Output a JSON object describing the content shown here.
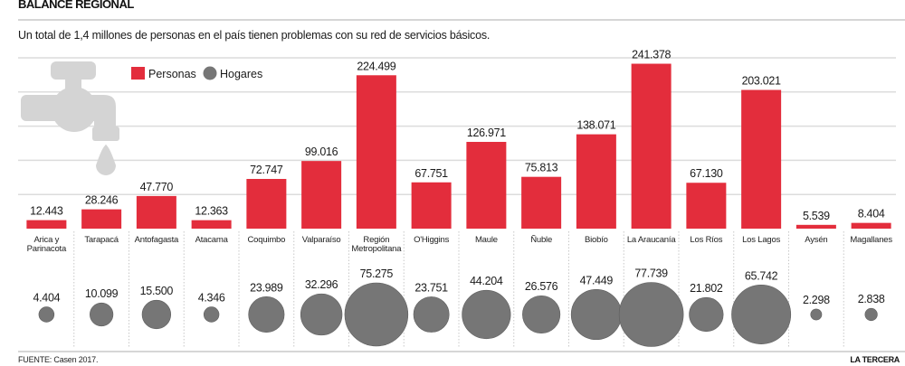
{
  "header": {
    "title": "BALANCE REGIONAL",
    "subtitle": "Un total de 1,4 millones de personas en el país tienen problemas con su red de servicios básicos."
  },
  "footer": {
    "source": "FUENTE: Casen 2017.",
    "brand": "LA TERCERA"
  },
  "colors": {
    "personas": "#e32d3c",
    "hogares": "#767676",
    "grid": "#dcdcdc",
    "faucet": "#d4d4d4"
  },
  "icons": {
    "illustration": "faucet-icon"
  },
  "chart_data": {
    "type": "bar",
    "title": "BALANCE REGIONAL",
    "subtitle": "Un total de 1,4 millones de personas en el país tienen problemas con su red de servicios básicos.",
    "xlabel": "",
    "ylabel": "",
    "ylim": [
      0,
      250000
    ],
    "grid": true,
    "legend": {
      "placement": "top-left",
      "entries": [
        {
          "name": "Personas",
          "marker": "square"
        },
        {
          "name": "Hogares",
          "marker": "circle"
        }
      ]
    },
    "categories": [
      "Arica y Parinacota",
      "Tarapacá",
      "Antofagasta",
      "Atacama",
      "Coquimbo",
      "Valparaíso",
      "Región Metropolitana",
      "O'Higgins",
      "Maule",
      "Ñuble",
      "Biobío",
      "La Araucanía",
      "Los Ríos",
      "Los Lagos",
      "Aysén",
      "Magallanes"
    ],
    "category_lines": [
      [
        "Arica y",
        "Parinacota"
      ],
      [
        "Tarapacá"
      ],
      [
        "Antofagasta"
      ],
      [
        "Atacama"
      ],
      [
        "Coquimbo"
      ],
      [
        "Valparaíso"
      ],
      [
        "Región",
        "Metropolitana"
      ],
      [
        "O'Higgins"
      ],
      [
        "Maule"
      ],
      [
        "Ñuble"
      ],
      [
        "Biobío"
      ],
      [
        "La Araucanía"
      ],
      [
        "Los Ríos"
      ],
      [
        "Los Lagos"
      ],
      [
        "Aysén"
      ],
      [
        "Magallanes"
      ]
    ],
    "series": [
      {
        "name": "Personas",
        "type": "bar",
        "values": [
          12443,
          28246,
          47770,
          12363,
          72747,
          99016,
          224499,
          67751,
          126971,
          75813,
          138071,
          241378,
          67130,
          203021,
          5539,
          8404
        ],
        "labels": [
          "12.443",
          "28.246",
          "47.770",
          "12.363",
          "72.747",
          "99.016",
          "224.499",
          "67.751",
          "126.971",
          "75.813",
          "138.071",
          "241.378",
          "67.130",
          "203.021",
          "5.539",
          "8.404"
        ]
      },
      {
        "name": "Hogares",
        "type": "bubble",
        "values": [
          4404,
          10099,
          15500,
          4346,
          23989,
          32296,
          75275,
          23751,
          44204,
          26576,
          47449,
          77739,
          21802,
          65742,
          2298,
          2838
        ],
        "labels": [
          "4.404",
          "10.099",
          "15.500",
          "4.346",
          "23.989",
          "32.296",
          "75.275",
          "23.751",
          "44.204",
          "26.576",
          "47.449",
          "77.739",
          "21.802",
          "65.742",
          "2.298",
          "2.838"
        ]
      }
    ],
    "source": "FUENTE: Casen 2017."
  }
}
